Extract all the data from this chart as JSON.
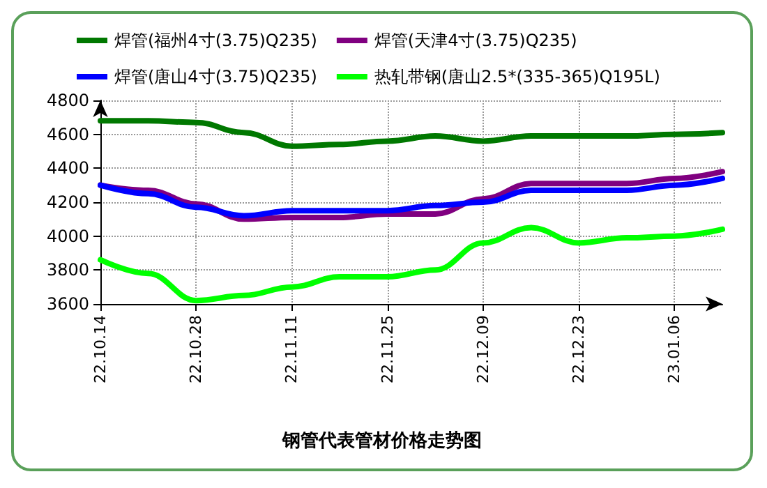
{
  "chart_data": {
    "type": "line",
    "title": "钢管代表管材价格走势图",
    "categories": [
      "22.10.14",
      null,
      "22.10.28",
      null,
      "22.11.11",
      null,
      "22.11.25",
      null,
      "22.12.09",
      null,
      "22.12.23",
      null,
      "23.01.06",
      null
    ],
    "series": [
      {
        "name": "焊管(福州4寸(3.75)Q235)",
        "color": "#007800",
        "values": [
          4680,
          4680,
          4670,
          4610,
          4530,
          4540,
          4560,
          4590,
          4560,
          4590,
          4590,
          4590,
          4600,
          4610
        ]
      },
      {
        "name": "焊管(天津4寸(3.75)Q235)",
        "color": "#800080",
        "values": [
          4300,
          4270,
          4190,
          4100,
          4110,
          4110,
          4130,
          4130,
          4220,
          4310,
          4310,
          4310,
          4340,
          4380
        ]
      },
      {
        "name": "焊管(唐山4寸(3.75)Q235)",
        "color": "#0000ff",
        "values": [
          4300,
          4250,
          4170,
          4120,
          4150,
          4150,
          4150,
          4180,
          4200,
          4270,
          4270,
          4270,
          4300,
          4340
        ]
      },
      {
        "name": "热轧带钢(唐山2.5*(335-365)Q195L)",
        "color": "#00ff00",
        "values": [
          3860,
          3780,
          3620,
          3650,
          3700,
          3760,
          3760,
          3800,
          3960,
          4050,
          3960,
          3990,
          4000,
          4040
        ]
      }
    ],
    "ylim": [
      3600,
      4800
    ],
    "yticks": [
      3600,
      3800,
      4000,
      4200,
      4400,
      4600,
      4800
    ],
    "grid": true,
    "legend": "top",
    "marker": "none",
    "line_style": "solid"
  }
}
